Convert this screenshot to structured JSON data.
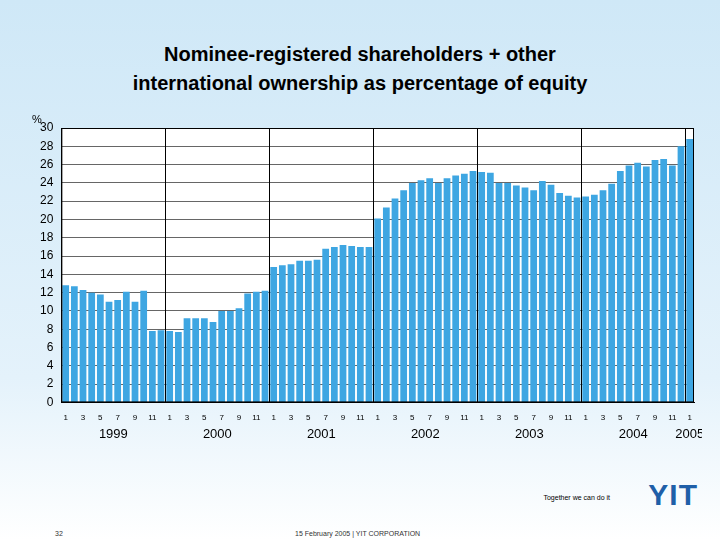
{
  "chart_data": {
    "type": "bar",
    "title": [
      "Nominee-registered shareholders + other",
      "international ownership as percentage of equity"
    ],
    "ylabel": "%",
    "categories": [
      "1",
      null,
      "3",
      null,
      "5",
      null,
      "7",
      null,
      "9",
      null,
      "11",
      null,
      "1",
      null,
      "3",
      null,
      "5",
      null,
      "7",
      null,
      "9",
      null,
      "11",
      null,
      "1",
      null,
      "3",
      null,
      "5",
      null,
      "7",
      null,
      "9",
      null,
      "11",
      null,
      "1",
      null,
      "3",
      null,
      "5",
      null,
      "7",
      null,
      "9",
      null,
      "11",
      null,
      "1",
      null,
      "3",
      null,
      "5",
      null,
      "7",
      null,
      "9",
      null,
      "11",
      null,
      "1",
      null,
      "3",
      null,
      "5",
      null,
      "7",
      null,
      "9",
      null,
      "11",
      null,
      "1"
    ],
    "x_groups": [
      "1999",
      "2000",
      "2001",
      "2002",
      "2003",
      "2004",
      "2005"
    ],
    "values": [
      12.8,
      12.7,
      12.3,
      12.0,
      11.8,
      11.0,
      11.2,
      12.1,
      11.0,
      12.2,
      7.8,
      7.9,
      7.8,
      7.7,
      9.2,
      9.2,
      9.2,
      8.8,
      10.0,
      10.0,
      10.3,
      11.9,
      12.1,
      12.2,
      14.8,
      15.0,
      15.1,
      15.5,
      15.5,
      15.6,
      16.8,
      17.0,
      17.2,
      17.1,
      17.0,
      17.0,
      20.1,
      21.3,
      22.3,
      23.2,
      24.0,
      24.3,
      24.5,
      24.0,
      24.5,
      24.8,
      25.0,
      25.3,
      25.2,
      25.1,
      24.0,
      24.0,
      23.7,
      23.5,
      23.2,
      24.2,
      23.8,
      22.9,
      22.6,
      22.4,
      22.5,
      22.7,
      23.2,
      23.9,
      25.3,
      25.9,
      26.2,
      25.8,
      26.5,
      26.6,
      25.9,
      28.0,
      28.8
    ],
    "color": "#3ea6e2",
    "ylim": [
      0,
      30
    ],
    "yticks": [
      0,
      2,
      4,
      6,
      8,
      10,
      12,
      14,
      16,
      18,
      20,
      22,
      24,
      26,
      28,
      30
    ],
    "grid": true
  },
  "footer": {
    "slogan": "Together we can do it",
    "logo": "YIT",
    "page": "32",
    "date_line": "15 February 2005  |  YIT CORPORATION"
  }
}
